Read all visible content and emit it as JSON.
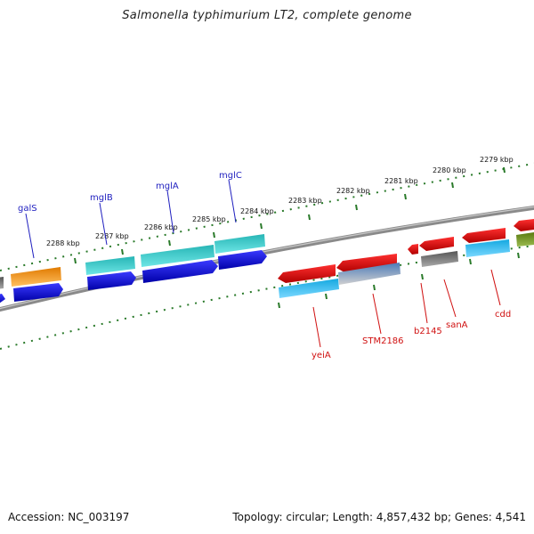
{
  "title": "Salmonella typhimurium LT2, complete genome",
  "footer": {
    "accession": "Accession: NC_003197",
    "summary": "Topology: circular; Length: 4,857,432 bp; Genes: 4,541"
  },
  "ruler": {
    "labels": [
      "2279 kbp",
      "2280 kbp",
      "2281 kbp",
      "2282 kbp",
      "2283 kbp",
      "2284 kbp",
      "2285 kbp",
      "2286 kbp",
      "2287 kbp",
      "2288 kbp"
    ]
  },
  "genes": {
    "upper": [
      {
        "name": "galS",
        "color": "#1f1fbf"
      },
      {
        "name": "mglB",
        "color": "#1f1fbf"
      },
      {
        "name": "mglA",
        "color": "#1f1fbf"
      },
      {
        "name": "mglC",
        "color": "#1f1fbf"
      }
    ],
    "lower": [
      {
        "name": "yeiA",
        "color": "#d01010"
      },
      {
        "name": "STM2186",
        "color": "#d01010"
      },
      {
        "name": "b2145",
        "color": "#d01010"
      },
      {
        "name": "sanA",
        "color": "#d01010"
      },
      {
        "name": "cdd",
        "color": "#d01010"
      }
    ]
  },
  "colors": {
    "backbone": "#808080",
    "ruler_ticks": "#2a7a2a",
    "feature_blue": "#1010d8",
    "feature_cyan": "#22c4c4",
    "feature_red": "#e01010",
    "feature_orange": "#f59a1a",
    "feature_gray": "#666666",
    "feature_sky": "#14a8e0",
    "feature_olive": "#6a8c1e"
  }
}
